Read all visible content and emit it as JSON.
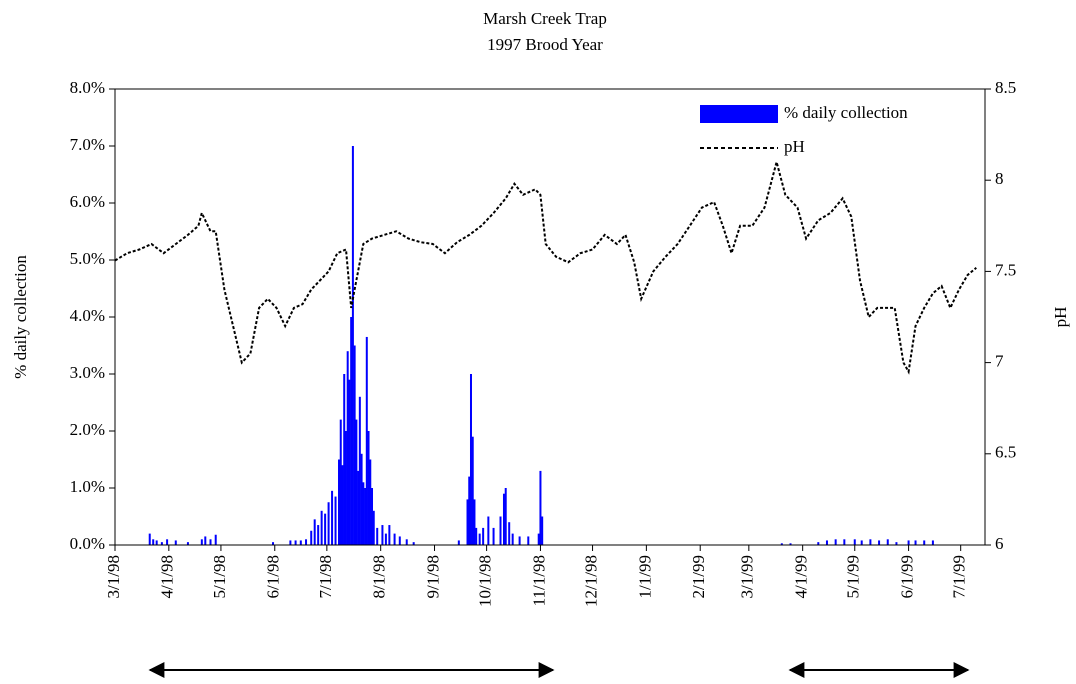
{
  "chart_data": {
    "type": "combo",
    "title": "Marsh Creek Trap",
    "subtitle": "1997 Brood Year",
    "y_label": "% daily collection",
    "y2_label": "pH",
    "xlim": [
      "3/1/98",
      "7/15/99"
    ],
    "xticks": [
      "3/1/98",
      "4/1/98",
      "5/1/98",
      "6/1/98",
      "7/1/98",
      "8/1/98",
      "9/1/98",
      "10/1/98",
      "11/1/98",
      "12/1/98",
      "1/1/99",
      "2/1/99",
      "3/1/99",
      "4/1/99",
      "5/1/99",
      "6/1/99",
      "7/1/99"
    ],
    "ylim": [
      0,
      8
    ],
    "yticks": [
      {
        "value": 0,
        "label": "0.0%"
      },
      {
        "value": 1,
        "label": "1.0%"
      },
      {
        "value": 2,
        "label": "2.0%"
      },
      {
        "value": 3,
        "label": "3.0%"
      },
      {
        "value": 4,
        "label": "4.0%"
      },
      {
        "value": 5,
        "label": "5.0%"
      },
      {
        "value": 6,
        "label": "6.0%"
      },
      {
        "value": 7,
        "label": "7.0%"
      },
      {
        "value": 8,
        "label": "8.0%"
      }
    ],
    "y2lim": [
      6,
      8.5
    ],
    "y2ticks": [
      6,
      6.5,
      7,
      7.5,
      8,
      8.5
    ],
    "legend": "upper right",
    "series": [
      {
        "name": "% daily collection",
        "type": "bar",
        "color": "#0000ff",
        "x": [
          "3/21/98",
          "3/23/98",
          "3/25/98",
          "3/28/98",
          "3/31/98",
          "4/5/98",
          "4/12/98",
          "4/20/98",
          "4/22/98",
          "4/25/98",
          "4/28/98",
          "5/31/98",
          "6/10/98",
          "6/13/98",
          "6/16/98",
          "6/19/98",
          "6/22/98",
          "6/24/98",
          "6/26/98",
          "6/28/98",
          "6/30/98",
          "7/2/98",
          "7/4/98",
          "7/6/98",
          "7/8/98",
          "7/9/98",
          "7/10/98",
          "7/11/98",
          "7/12/98",
          "7/13/98",
          "7/14/98",
          "7/15/98",
          "7/16/98",
          "7/17/98",
          "7/18/98",
          "7/19/98",
          "7/20/98",
          "7/21/98",
          "7/22/98",
          "7/23/98",
          "7/24/98",
          "7/25/98",
          "7/26/98",
          "7/27/98",
          "7/28/98",
          "7/30/98",
          "8/2/98",
          "8/4/98",
          "8/6/98",
          "8/9/98",
          "8/12/98",
          "8/16/98",
          "8/20/98",
          "9/15/98",
          "9/20/98",
          "9/21/98",
          "9/22/98",
          "9/23/98",
          "9/24/98",
          "9/25/98",
          "9/27/98",
          "9/29/98",
          "10/2/98",
          "10/5/98",
          "10/9/98",
          "10/11/98",
          "10/12/98",
          "10/14/98",
          "10/16/98",
          "10/20/98",
          "10/25/98",
          "10/31/98",
          "11/1/98",
          "11/2/98",
          "3/20/99",
          "3/25/99",
          "4/10/99",
          "4/15/99",
          "4/20/99",
          "4/25/99",
          "5/1/99",
          "5/5/99",
          "5/10/99",
          "5/15/99",
          "5/20/99",
          "5/25/99",
          "6/1/99",
          "6/5/99",
          "6/10/99",
          "6/15/99"
        ],
        "values": [
          0.2,
          0.1,
          0.08,
          0.05,
          0.1,
          0.08,
          0.05,
          0.1,
          0.15,
          0.1,
          0.18,
          0.05,
          0.08,
          0.08,
          0.08,
          0.1,
          0.25,
          0.45,
          0.35,
          0.6,
          0.55,
          0.75,
          0.95,
          0.85,
          1.5,
          2.2,
          1.4,
          3.0,
          2.0,
          3.4,
          2.9,
          4.0,
          7.0,
          3.5,
          2.2,
          1.3,
          2.6,
          1.6,
          1.1,
          1.0,
          3.65,
          2.0,
          1.5,
          1.0,
          0.6,
          0.3,
          0.35,
          0.2,
          0.35,
          0.2,
          0.15,
          0.1,
          0.05,
          0.08,
          0.8,
          1.2,
          3.0,
          1.9,
          0.8,
          0.3,
          0.2,
          0.3,
          0.5,
          0.3,
          0.5,
          0.9,
          1.0,
          0.4,
          0.2,
          0.15,
          0.15,
          0.2,
          1.3,
          0.5,
          0.03,
          0.03,
          0.05,
          0.08,
          0.1,
          0.1,
          0.1,
          0.08,
          0.1,
          0.08,
          0.1,
          0.05,
          0.08,
          0.08,
          0.08,
          0.08
        ]
      },
      {
        "name": "pH",
        "type": "line",
        "axis": "y2",
        "color": "#000000",
        "dashed": true,
        "x": [
          "3/1/98",
          "3/8/98",
          "3/15/98",
          "3/22/98",
          "3/29/98",
          "4/5/98",
          "4/12/98",
          "4/18/98",
          "4/20/98",
          "4/25/98",
          "4/28/98",
          "5/3/98",
          "5/8/98",
          "5/13/98",
          "5/18/98",
          "5/23/98",
          "5/28/98",
          "6/2/98",
          "6/7/98",
          "6/12/98",
          "6/17/98",
          "6/22/98",
          "6/27/98",
          "7/2/98",
          "7/7/98",
          "7/12/98",
          "7/15/98",
          "7/17/98",
          "7/22/98",
          "7/27/98",
          "8/3/98",
          "8/10/98",
          "8/17/98",
          "8/24/98",
          "8/31/98",
          "9/7/98",
          "9/14/98",
          "9/21/98",
          "9/28/98",
          "10/5/98",
          "10/12/98",
          "10/17/98",
          "10/22/98",
          "10/29/98",
          "11/1/98",
          "11/4/98",
          "11/10/98",
          "11/17/98",
          "11/24/98",
          "12/1/98",
          "12/8/98",
          "12/15/98",
          "12/20/98",
          "12/25/98",
          "12/29/98",
          "1/5/99",
          "1/12/99",
          "1/19/99",
          "1/26/99",
          "2/2/99",
          "2/9/99",
          "2/14/99",
          "2/19/99",
          "2/24/99",
          "3/3/99",
          "3/10/99",
          "3/17/99",
          "3/22/99",
          "3/29/99",
          "4/3/99",
          "4/10/99",
          "4/17/99",
          "4/24/99",
          "4/29/99",
          "5/4/99",
          "5/9/99",
          "5/14/99",
          "5/19/99",
          "5/24/99",
          "5/29/99",
          "6/1/99",
          "6/5/99",
          "6/10/99",
          "6/15/99",
          "6/20/99",
          "6/25/99",
          "6/30/99",
          "7/5/99",
          "7/10/99"
        ],
        "values": [
          7.56,
          7.6,
          7.62,
          7.65,
          7.6,
          7.65,
          7.7,
          7.75,
          7.82,
          7.72,
          7.72,
          7.4,
          7.2,
          7.0,
          7.05,
          7.3,
          7.35,
          7.3,
          7.2,
          7.3,
          7.32,
          7.4,
          7.45,
          7.5,
          7.6,
          7.62,
          7.3,
          7.4,
          7.65,
          7.68,
          7.7,
          7.72,
          7.68,
          7.66,
          7.65,
          7.6,
          7.66,
          7.7,
          7.75,
          7.82,
          7.9,
          7.98,
          7.92,
          7.95,
          7.92,
          7.65,
          7.58,
          7.55,
          7.6,
          7.62,
          7.7,
          7.65,
          7.7,
          7.55,
          7.35,
          7.5,
          7.58,
          7.65,
          7.75,
          7.85,
          7.88,
          7.75,
          7.6,
          7.75,
          7.75,
          7.85,
          8.1,
          7.92,
          7.85,
          7.68,
          7.78,
          7.82,
          7.9,
          7.8,
          7.45,
          7.25,
          7.3,
          7.3,
          7.3,
          7.0,
          6.95,
          7.2,
          7.3,
          7.38,
          7.42,
          7.3,
          7.4,
          7.48,
          7.52
        ]
      }
    ]
  }
}
